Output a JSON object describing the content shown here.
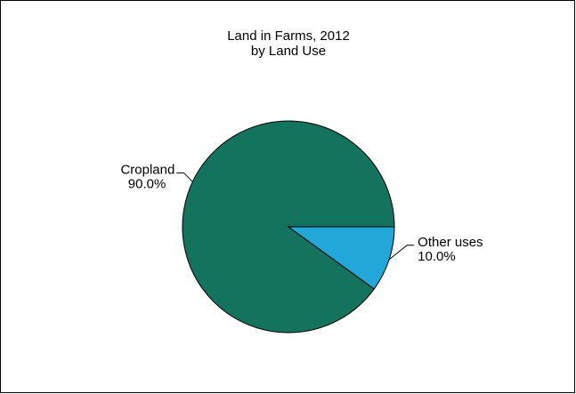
{
  "chart_data": {
    "type": "pie",
    "title": "Land in Farms, 2012",
    "subtitle": "by Land Use",
    "slices": [
      {
        "name": "Cropland",
        "value": 90.0,
        "label": "90.0%",
        "color": "#14735c"
      },
      {
        "name": "Other uses",
        "value": 10.0,
        "label": "10.0%",
        "color": "#22a7d9"
      }
    ],
    "legend": "none",
    "start_angle_deg": 0,
    "direction": "counterclockwise"
  }
}
